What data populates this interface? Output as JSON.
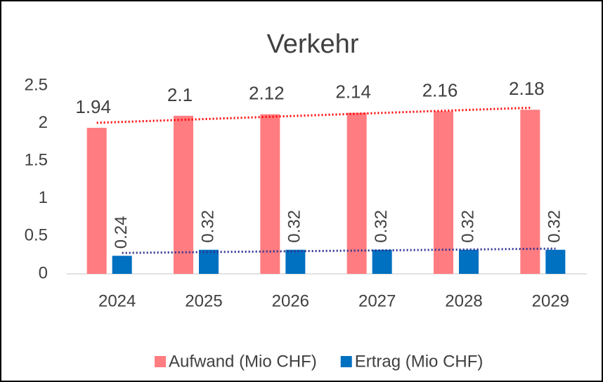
{
  "chart_data": {
    "type": "bar",
    "title": "Verkehr",
    "categories": [
      "2024",
      "2025",
      "2026",
      "2027",
      "2028",
      "2029"
    ],
    "series": [
      {
        "name": "Aufwand (Mio CHF)",
        "color": "#ff7c80",
        "values": [
          1.94,
          2.1,
          2.12,
          2.14,
          2.16,
          2.18
        ],
        "trendline": true,
        "trendline_color": "#ff0000",
        "label_orientation": "horizontal"
      },
      {
        "name": "Ertrag (Mio CHF)",
        "color": "#0070c0",
        "values": [
          0.24,
          0.32,
          0.32,
          0.32,
          0.32,
          0.32
        ],
        "trendline": true,
        "trendline_color": "#2e3192",
        "label_orientation": "vertical"
      }
    ],
    "ylim": [
      0,
      2.5
    ],
    "yticks": [
      0,
      0.5,
      1,
      1.5,
      2,
      2.5
    ],
    "grid": false,
    "legend": "bottom"
  }
}
